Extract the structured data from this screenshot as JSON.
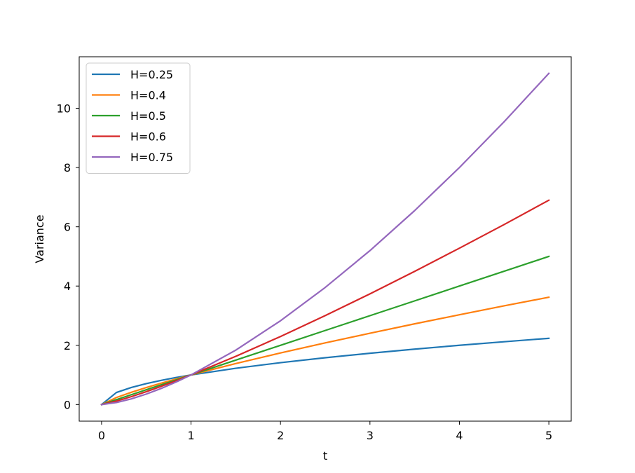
{
  "chart_data": {
    "type": "line",
    "title": "",
    "xlabel": "t",
    "ylabel": "Variance",
    "xlim": [
      -0.25,
      5.25
    ],
    "ylim": [
      -0.56,
      11.74
    ],
    "xticks": [
      0,
      1,
      2,
      3,
      4,
      5
    ],
    "yticks": [
      0,
      2,
      4,
      6,
      8,
      10
    ],
    "grid": false,
    "legend_position": "top-left",
    "x": [
      0,
      0.1667,
      0.3333,
      0.5,
      0.6667,
      0.8333,
      1,
      1.5,
      2,
      2.5,
      3,
      3.5,
      4,
      4.5,
      5
    ],
    "series": [
      {
        "name": "H=0.25",
        "color": "#1f77b4",
        "values": [
          0,
          0.408,
          0.577,
          0.707,
          0.816,
          0.913,
          1,
          1.225,
          1.414,
          1.581,
          1.732,
          1.871,
          2.0,
          2.121,
          2.236
        ]
      },
      {
        "name": "H=0.4",
        "color": "#ff7f0e",
        "values": [
          0,
          0.238,
          0.415,
          0.574,
          0.723,
          0.864,
          1,
          1.383,
          1.741,
          2.081,
          2.408,
          2.725,
          3.031,
          3.332,
          3.624
        ]
      },
      {
        "name": "H=0.5",
        "color": "#2ca02c",
        "values": [
          0,
          0.167,
          0.333,
          0.5,
          0.667,
          0.833,
          1,
          1.5,
          2.0,
          2.5,
          3.0,
          3.5,
          4.0,
          4.5,
          5.0
        ]
      },
      {
        "name": "H=0.6",
        "color": "#d62728",
        "values": [
          0,
          0.117,
          0.268,
          0.435,
          0.615,
          0.803,
          1,
          1.627,
          2.297,
          3.003,
          3.737,
          4.496,
          5.278,
          6.077,
          6.898
        ]
      },
      {
        "name": "H=0.75",
        "color": "#9467bd",
        "values": [
          0,
          0.068,
          0.192,
          0.354,
          0.544,
          0.761,
          1,
          1.837,
          2.828,
          3.953,
          5.196,
          6.548,
          8.0,
          9.546,
          11.18
        ]
      }
    ]
  }
}
